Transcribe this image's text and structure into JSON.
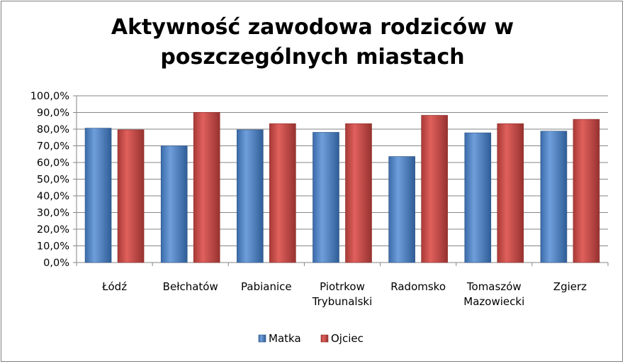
{
  "chart_data": {
    "type": "bar",
    "title": [
      "Aktywność zawodowa rodziców w",
      "poszczególnych miastach"
    ],
    "categories": [
      [
        "Łódź"
      ],
      [
        "Bełchatów"
      ],
      [
        "Pabianice"
      ],
      [
        "Piotrkow",
        "Trybunalski"
      ],
      [
        "Radomsko"
      ],
      [
        "Tomaszów",
        "Mazowiecki"
      ],
      [
        "Zgierz"
      ]
    ],
    "series": [
      {
        "name": "Matka",
        "values": [
          80.6,
          70.0,
          79.6,
          78.1,
          63.6,
          77.8,
          78.8
        ],
        "color": "#4a7ebb"
      },
      {
        "name": "Ojciec",
        "values": [
          79.6,
          90.1,
          83.3,
          83.3,
          88.3,
          83.3,
          85.9
        ],
        "color": "#be4b48"
      }
    ],
    "y_ticks": [
      "0,0%",
      "10,0%",
      "20,0%",
      "30,0%",
      "40,0%",
      "50,0%",
      "60,0%",
      "70,0%",
      "80,0%",
      "90,0%",
      "100,0%"
    ],
    "ylim": [
      0,
      100
    ],
    "grid": true,
    "legend_position": "bottom"
  }
}
